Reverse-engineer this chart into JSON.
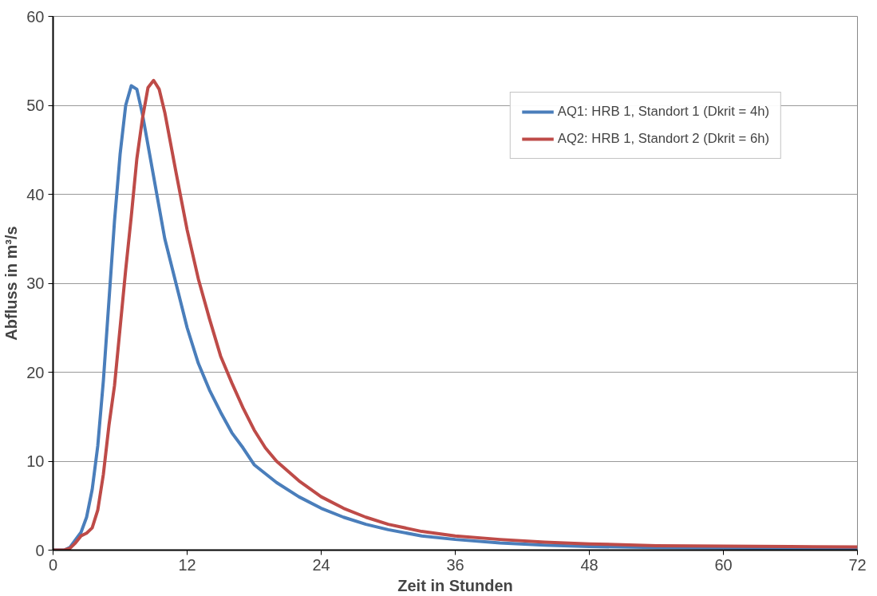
{
  "chart_data": {
    "type": "line",
    "xlabel": "Zeit in Stunden",
    "ylabel": "Abfluss in m³/s",
    "xlim": [
      0,
      72
    ],
    "ylim": [
      0,
      60
    ],
    "xticks": [
      0,
      12,
      24,
      36,
      48,
      60,
      72
    ],
    "yticks": [
      0,
      10,
      20,
      30,
      40,
      50,
      60
    ],
    "grid": "y",
    "legend": "top right",
    "line_style": "solid",
    "marker": "none",
    "series": [
      {
        "name": "AQ1: HRB 1, Standort 1 (Dkrit = 4h)",
        "color": "#4a7ebb",
        "x": [
          0,
          1,
          1.5,
          2.5,
          3,
          3.5,
          4,
          4.5,
          5,
          5.5,
          6,
          6.5,
          7,
          7.5,
          8,
          9,
          10,
          11,
          12,
          13,
          14,
          15,
          16,
          17,
          18,
          20,
          22,
          24,
          26,
          28,
          30,
          33,
          36,
          40,
          44,
          48,
          54,
          60,
          66,
          72
        ],
        "values": [
          0,
          0,
          0.3,
          2,
          3.7,
          6.8,
          11.7,
          19,
          28,
          37,
          44.5,
          50,
          52.2,
          51.8,
          49,
          42,
          35,
          30,
          25,
          21,
          18,
          15.5,
          13.2,
          11.5,
          9.6,
          7.6,
          6,
          4.7,
          3.7,
          2.9,
          2.3,
          1.6,
          1.2,
          0.8,
          0.55,
          0.4,
          0.3,
          0.25,
          0.2,
          0.2
        ]
      },
      {
        "name": "AQ2: HRB 1, Standort 2 (Dkrit = 6h)",
        "color": "#be4b48",
        "x": [
          0,
          1,
          1.5,
          2,
          2.5,
          3,
          3.5,
          4,
          4.5,
          5,
          5.5,
          6,
          6.5,
          7,
          7.5,
          8,
          8.5,
          9,
          9.5,
          10,
          11,
          12,
          13,
          14,
          15,
          16,
          17,
          18,
          19,
          20,
          22,
          24,
          26,
          28,
          30,
          33,
          36,
          40,
          44,
          48,
          54,
          60,
          66,
          72
        ],
        "values": [
          0,
          0,
          0.2,
          0.8,
          1.6,
          1.9,
          2.5,
          4.5,
          8.5,
          14,
          18.5,
          25,
          31.5,
          37.5,
          44,
          48.5,
          52,
          52.8,
          51.8,
          49.2,
          42.5,
          36,
          30.5,
          26,
          21.8,
          18.8,
          16,
          13.5,
          11.5,
          10,
          7.8,
          6,
          4.7,
          3.7,
          2.9,
          2.1,
          1.6,
          1.2,
          0.9,
          0.7,
          0.5,
          0.45,
          0.4,
          0.35
        ]
      }
    ]
  }
}
